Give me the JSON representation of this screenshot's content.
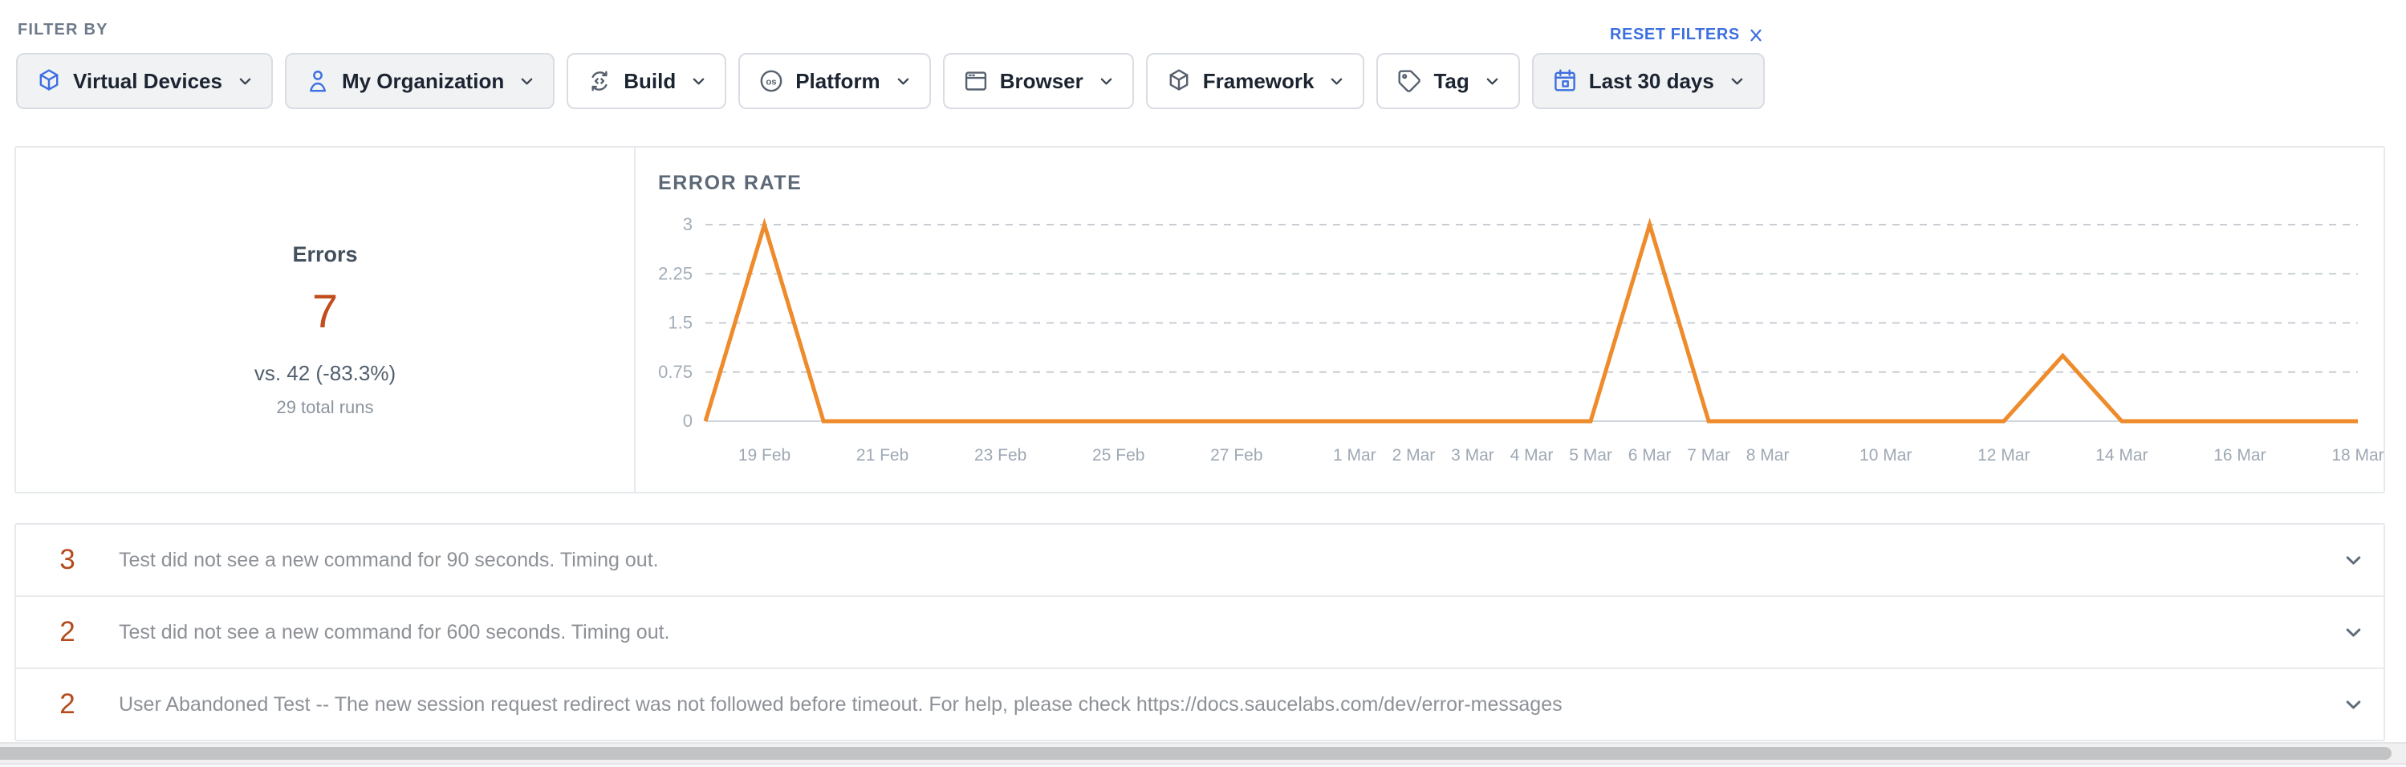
{
  "filter_bar": {
    "label": "FILTER BY",
    "reset_label": "RESET FILTERS",
    "chips": [
      {
        "label": "Virtual Devices",
        "icon": "cube-icon",
        "active": true,
        "icon_color": "#3d6fe0"
      },
      {
        "label": "My Organization",
        "icon": "person-icon",
        "active": true,
        "icon_color": "#3d6fe0"
      },
      {
        "label": "Build",
        "icon": "build-sync-icon",
        "active": false,
        "icon_color": "#57616e"
      },
      {
        "label": "Platform",
        "icon": "os-icon",
        "active": false,
        "icon_color": "#57616e"
      },
      {
        "label": "Browser",
        "icon": "browser-icon",
        "active": false,
        "icon_color": "#57616e"
      },
      {
        "label": "Framework",
        "icon": "framework-cube-icon",
        "active": false,
        "icon_color": "#57616e"
      },
      {
        "label": "Tag",
        "icon": "tag-icon",
        "active": false,
        "icon_color": "#57616e"
      },
      {
        "label": "Last 30 days",
        "icon": "calendar-icon",
        "active": true,
        "icon_color": "#3d6fe0"
      }
    ]
  },
  "summary": {
    "title": "Errors",
    "value": "7",
    "comparison": "vs. 42 (-83.3%)",
    "total_runs": "29 total runs"
  },
  "chart_data": {
    "type": "line",
    "title": "ERROR RATE",
    "ylabel": "",
    "xlabel": "",
    "ylim": [
      0,
      3
    ],
    "y_ticks": [
      0,
      0.75,
      1.5,
      2.25,
      3
    ],
    "grid": "dashed horizontal gridlines, solid zero baseline",
    "legend": "none",
    "line_color": "#ee8b2b",
    "x_tick_labels": [
      "19 Feb",
      "21 Feb",
      "23 Feb",
      "25 Feb",
      "27 Feb",
      "1 Mar",
      "2 Mar",
      "3 Mar",
      "4 Mar",
      "5 Mar",
      "6 Mar",
      "7 Mar",
      "8 Mar",
      "10 Mar",
      "12 Mar",
      "14 Mar",
      "16 Mar",
      "18 Mar"
    ],
    "points": [
      {
        "date": "18 Feb",
        "value": 0
      },
      {
        "date": "19 Feb",
        "value": 3
      },
      {
        "date": "20 Feb",
        "value": 0
      },
      {
        "date": "21 Feb",
        "value": 0
      },
      {
        "date": "22 Feb",
        "value": 0
      },
      {
        "date": "23 Feb",
        "value": 0
      },
      {
        "date": "24 Feb",
        "value": 0
      },
      {
        "date": "25 Feb",
        "value": 0
      },
      {
        "date": "26 Feb",
        "value": 0
      },
      {
        "date": "27 Feb",
        "value": 0
      },
      {
        "date": "28 Feb",
        "value": 0
      },
      {
        "date": "1 Mar",
        "value": 0
      },
      {
        "date": "2 Mar",
        "value": 0
      },
      {
        "date": "3 Mar",
        "value": 0
      },
      {
        "date": "4 Mar",
        "value": 0
      },
      {
        "date": "5 Mar",
        "value": 0
      },
      {
        "date": "6 Mar",
        "value": 3
      },
      {
        "date": "7 Mar",
        "value": 0
      },
      {
        "date": "8 Mar",
        "value": 0
      },
      {
        "date": "9 Mar",
        "value": 0
      },
      {
        "date": "10 Mar",
        "value": 0
      },
      {
        "date": "11 Mar",
        "value": 0
      },
      {
        "date": "12 Mar",
        "value": 0
      },
      {
        "date": "13 Mar",
        "value": 1
      },
      {
        "date": "14 Mar",
        "value": 0
      },
      {
        "date": "15 Mar",
        "value": 0
      },
      {
        "date": "16 Mar",
        "value": 0
      },
      {
        "date": "17 Mar",
        "value": 0
      },
      {
        "date": "18 Mar",
        "value": 0
      }
    ]
  },
  "error_list": [
    {
      "count": "3",
      "message": "Test did not see a new command for 90 seconds. Timing out."
    },
    {
      "count": "2",
      "message": "Test did not see a new command for 600 seconds. Timing out."
    },
    {
      "count": "2",
      "message": "User Abandoned Test -- The new session request redirect was not followed before timeout. For help, please check https://docs.saucelabs.com/dev/error-messages"
    }
  ],
  "colors": {
    "accent_blue": "#3d6fe0",
    "chart_line_orange": "#ee8b2b",
    "summary_value_rust": "#c24e1e",
    "error_count_rust": "#b34b1c",
    "active_chip_bg": "#f0f2f4",
    "border_gray": "#e6e9ec",
    "muted_text": "#8d9197",
    "axis_text": "#a3adb8"
  }
}
